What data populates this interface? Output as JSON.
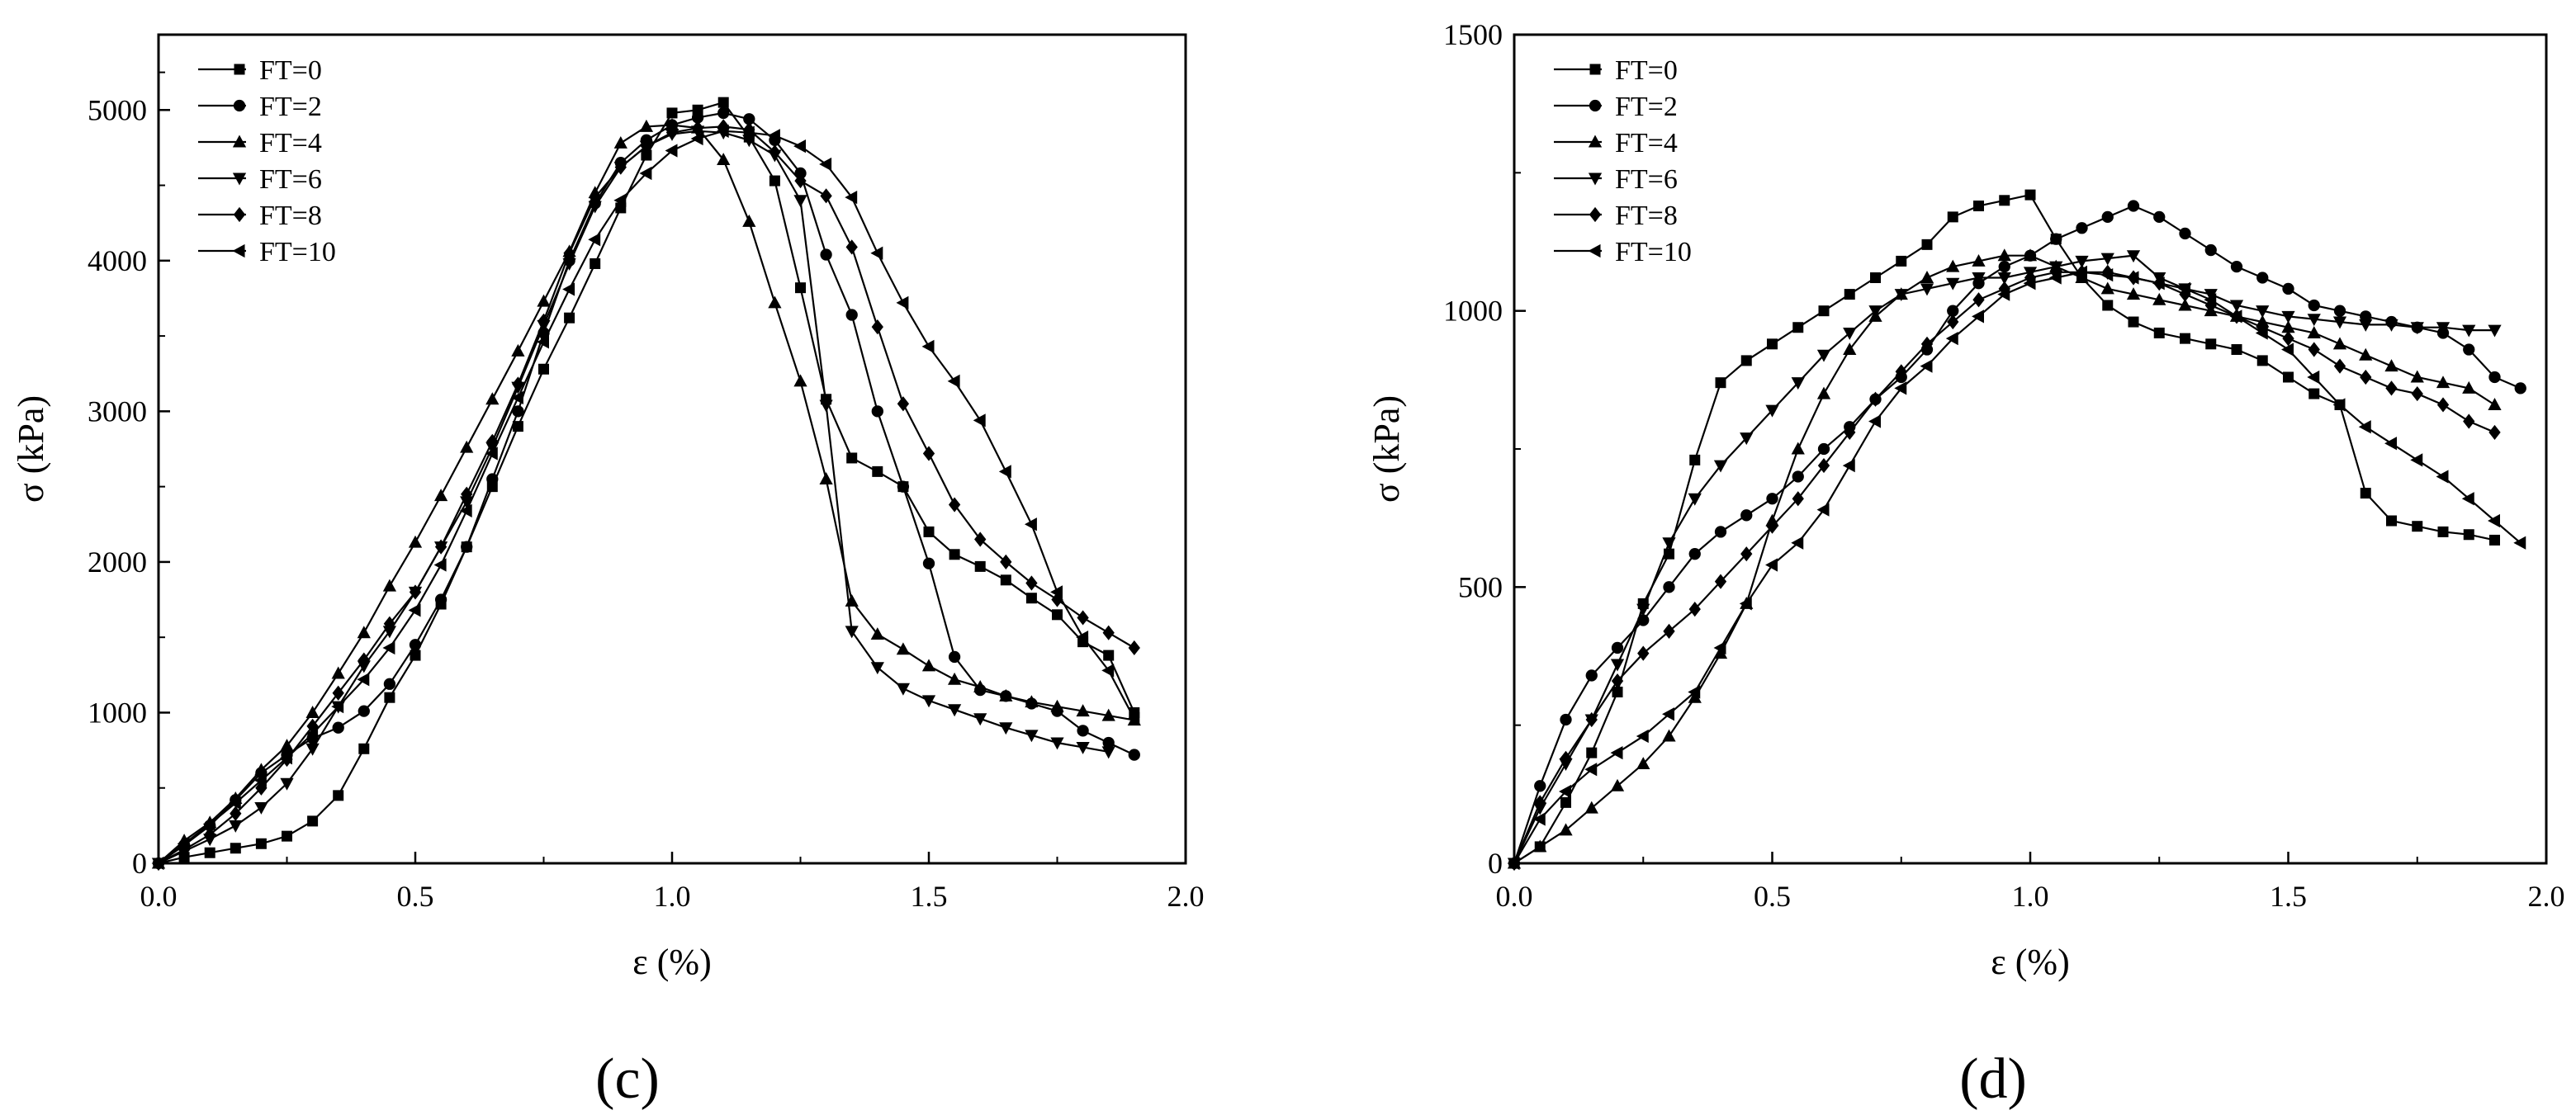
{
  "chart_data": [
    {
      "type": "line",
      "panel_label": "(c)",
      "xlabel": "ε (%)",
      "ylabel": "σ (kPa)",
      "xlim": [
        0,
        2.0
      ],
      "ylim": [
        0,
        5500
      ],
      "x_ticks": [
        0,
        0.5,
        1.0,
        1.5,
        2.0
      ],
      "x_tick_labels": [
        "0.0",
        "0.5",
        "1.0",
        "1.5",
        "2.0"
      ],
      "y_ticks": [
        0,
        1000,
        2000,
        3000,
        4000,
        5000
      ],
      "y_tick_labels": [
        "0",
        "1000",
        "2000",
        "3000",
        "4000",
        "5000"
      ],
      "legend_position": "top-left",
      "series": [
        {
          "name": "FT=0",
          "marker": "square",
          "x": [
            0,
            0.05,
            0.1,
            0.15,
            0.2,
            0.25,
            0.3,
            0.35,
            0.4,
            0.45,
            0.5,
            0.55,
            0.6,
            0.65,
            0.7,
            0.75,
            0.8,
            0.85,
            0.9,
            0.95,
            1.0,
            1.05,
            1.1,
            1.15,
            1.2,
            1.25,
            1.3,
            1.35,
            1.4,
            1.45,
            1.5,
            1.55,
            1.6,
            1.65,
            1.7,
            1.75,
            1.8,
            1.85,
            1.9
          ],
          "y": [
            0,
            40,
            70,
            100,
            130,
            180,
            280,
            450,
            760,
            1100,
            1380,
            1720,
            2100,
            2500,
            2900,
            3280,
            3620,
            3980,
            4350,
            4700,
            4980,
            5000,
            5050,
            4820,
            4530,
            3820,
            3080,
            2690,
            2600,
            2500,
            2200,
            2050,
            1970,
            1880,
            1760,
            1650,
            1470,
            1380,
            1000
          ]
        },
        {
          "name": "FT=2",
          "marker": "circle",
          "x": [
            0,
            0.05,
            0.1,
            0.15,
            0.2,
            0.25,
            0.3,
            0.35,
            0.4,
            0.45,
            0.5,
            0.55,
            0.6,
            0.65,
            0.7,
            0.75,
            0.8,
            0.85,
            0.9,
            0.95,
            1.0,
            1.05,
            1.1,
            1.15,
            1.2,
            1.25,
            1.3,
            1.35,
            1.4,
            1.45,
            1.5,
            1.55,
            1.6,
            1.65,
            1.7,
            1.75,
            1.8,
            1.85,
            1.9
          ],
          "y": [
            0,
            120,
            250,
            420,
            600,
            720,
            830,
            900,
            1010,
            1190,
            1450,
            1750,
            2100,
            2550,
            3000,
            3520,
            4000,
            4380,
            4650,
            4800,
            4900,
            4950,
            4980,
            4940,
            4800,
            4580,
            4040,
            3640,
            3000,
            2500,
            1990,
            1370,
            1150,
            1110,
            1060,
            1010,
            880,
            800,
            720
          ]
        },
        {
          "name": "FT=4",
          "marker": "triangle-up",
          "x": [
            0,
            0.05,
            0.1,
            0.15,
            0.2,
            0.25,
            0.3,
            0.35,
            0.4,
            0.45,
            0.5,
            0.55,
            0.6,
            0.65,
            0.7,
            0.75,
            0.8,
            0.85,
            0.9,
            0.95,
            1.0,
            1.05,
            1.1,
            1.15,
            1.2,
            1.25,
            1.3,
            1.35,
            1.4,
            1.45,
            1.5,
            1.55,
            1.6,
            1.65,
            1.7,
            1.75,
            1.8,
            1.85,
            1.9
          ],
          "y": [
            0,
            150,
            270,
            430,
            620,
            780,
            1000,
            1260,
            1530,
            1840,
            2130,
            2440,
            2760,
            3080,
            3400,
            3730,
            4060,
            4450,
            4780,
            4890,
            4900,
            4880,
            4670,
            4260,
            3720,
            3200,
            2550,
            1740,
            1520,
            1420,
            1310,
            1220,
            1170,
            1110,
            1070,
            1040,
            1010,
            980,
            950
          ]
        },
        {
          "name": "FT=6",
          "marker": "triangle-down",
          "x": [
            0,
            0.05,
            0.1,
            0.15,
            0.2,
            0.25,
            0.3,
            0.35,
            0.4,
            0.45,
            0.5,
            0.55,
            0.6,
            0.65,
            0.7,
            0.75,
            0.8,
            0.85,
            0.9,
            0.95,
            1.0,
            1.05,
            1.1,
            1.15,
            1.2,
            1.25,
            1.3,
            1.35,
            1.4,
            1.45,
            1.5,
            1.55,
            1.6,
            1.65,
            1.7,
            1.75,
            1.8,
            1.85
          ],
          "y": [
            0,
            80,
            160,
            250,
            370,
            530,
            760,
            1040,
            1310,
            1540,
            1800,
            2100,
            2400,
            2760,
            3160,
            3570,
            3980,
            4360,
            4620,
            4760,
            4840,
            4860,
            4850,
            4800,
            4700,
            4400,
            3040,
            1540,
            1300,
            1160,
            1080,
            1020,
            960,
            900,
            850,
            800,
            770,
            740
          ]
        },
        {
          "name": "FT=8",
          "marker": "diamond",
          "x": [
            0,
            0.05,
            0.1,
            0.15,
            0.2,
            0.25,
            0.3,
            0.35,
            0.4,
            0.45,
            0.5,
            0.55,
            0.6,
            0.65,
            0.7,
            0.75,
            0.8,
            0.85,
            0.9,
            0.95,
            1.0,
            1.05,
            1.1,
            1.15,
            1.2,
            1.25,
            1.3,
            1.35,
            1.4,
            1.45,
            1.5,
            1.55,
            1.6,
            1.65,
            1.7,
            1.75,
            1.8,
            1.85,
            1.9
          ],
          "y": [
            0,
            90,
            190,
            330,
            500,
            690,
            910,
            1130,
            1350,
            1590,
            1800,
            2100,
            2450,
            2800,
            3180,
            3600,
            4050,
            4420,
            4620,
            4760,
            4850,
            4880,
            4890,
            4870,
            4720,
            4530,
            4430,
            4090,
            3560,
            3050,
            2720,
            2380,
            2150,
            2000,
            1860,
            1750,
            1630,
            1530,
            1430
          ]
        },
        {
          "name": "FT=10",
          "marker": "triangle-left",
          "x": [
            0,
            0.05,
            0.1,
            0.15,
            0.2,
            0.25,
            0.3,
            0.35,
            0.4,
            0.45,
            0.5,
            0.55,
            0.6,
            0.65,
            0.7,
            0.75,
            0.8,
            0.85,
            0.9,
            0.95,
            1.0,
            1.05,
            1.1,
            1.15,
            1.2,
            1.25,
            1.3,
            1.35,
            1.4,
            1.45,
            1.5,
            1.55,
            1.6,
            1.65,
            1.7,
            1.75,
            1.8,
            1.85,
            1.9
          ],
          "y": [
            0,
            130,
            260,
            400,
            550,
            700,
            860,
            1040,
            1220,
            1430,
            1680,
            1980,
            2340,
            2720,
            3090,
            3460,
            3810,
            4140,
            4400,
            4580,
            4730,
            4810,
            4860,
            4850,
            4830,
            4760,
            4640,
            4420,
            4050,
            3720,
            3430,
            3200,
            2940,
            2600,
            2250,
            1800,
            1500,
            1280,
            960
          ]
        }
      ]
    },
    {
      "type": "line",
      "panel_label": "(d)",
      "xlabel": "ε (%)",
      "ylabel": "σ (kPa)",
      "xlim": [
        0,
        2.0
      ],
      "ylim": [
        0,
        1500
      ],
      "x_ticks": [
        0,
        0.5,
        1.0,
        1.5,
        2.0
      ],
      "x_tick_labels": [
        "0.0",
        "0.5",
        "1.0",
        "1.5",
        "2.0"
      ],
      "y_ticks": [
        0,
        500,
        1000,
        1500
      ],
      "y_tick_labels": [
        "0",
        "500",
        "1000",
        "1500"
      ],
      "legend_position": "top-left",
      "series": [
        {
          "name": "FT=0",
          "marker": "square",
          "x": [
            0,
            0.05,
            0.1,
            0.15,
            0.2,
            0.25,
            0.3,
            0.35,
            0.4,
            0.45,
            0.5,
            0.55,
            0.6,
            0.65,
            0.7,
            0.75,
            0.8,
            0.85,
            0.9,
            0.95,
            1.0,
            1.05,
            1.1,
            1.15,
            1.2,
            1.25,
            1.3,
            1.35,
            1.4,
            1.45,
            1.5,
            1.55,
            1.6,
            1.65,
            1.7,
            1.75,
            1.8,
            1.85,
            1.9
          ],
          "y": [
            0,
            30,
            110,
            200,
            310,
            470,
            560,
            730,
            870,
            910,
            940,
            970,
            1000,
            1030,
            1060,
            1090,
            1120,
            1170,
            1190,
            1200,
            1210,
            1130,
            1060,
            1010,
            980,
            960,
            950,
            940,
            930,
            910,
            880,
            850,
            830,
            670,
            620,
            610,
            600,
            595,
            585
          ]
        },
        {
          "name": "FT=2",
          "marker": "circle",
          "x": [
            0,
            0.05,
            0.1,
            0.15,
            0.2,
            0.25,
            0.3,
            0.35,
            0.4,
            0.45,
            0.5,
            0.55,
            0.6,
            0.65,
            0.7,
            0.75,
            0.8,
            0.85,
            0.9,
            0.95,
            1.0,
            1.05,
            1.1,
            1.15,
            1.2,
            1.25,
            1.3,
            1.35,
            1.4,
            1.45,
            1.5,
            1.55,
            1.6,
            1.65,
            1.7,
            1.75,
            1.8,
            1.85,
            1.9,
            1.95
          ],
          "y": [
            0,
            140,
            260,
            340,
            390,
            440,
            500,
            560,
            600,
            630,
            660,
            700,
            750,
            790,
            840,
            880,
            930,
            1000,
            1050,
            1080,
            1100,
            1130,
            1150,
            1170,
            1190,
            1170,
            1140,
            1110,
            1080,
            1060,
            1040,
            1010,
            1000,
            990,
            980,
            970,
            960,
            930,
            880,
            860
          ]
        },
        {
          "name": "FT=4",
          "marker": "triangle-up",
          "x": [
            0,
            0.05,
            0.1,
            0.15,
            0.2,
            0.25,
            0.3,
            0.35,
            0.4,
            0.45,
            0.5,
            0.55,
            0.6,
            0.65,
            0.7,
            0.75,
            0.8,
            0.85,
            0.9,
            0.95,
            1.0,
            1.05,
            1.1,
            1.15,
            1.2,
            1.25,
            1.3,
            1.35,
            1.4,
            1.45,
            1.5,
            1.55,
            1.6,
            1.65,
            1.7,
            1.75,
            1.8,
            1.85,
            1.9
          ],
          "y": [
            0,
            30,
            60,
            100,
            140,
            180,
            230,
            300,
            380,
            470,
            620,
            750,
            850,
            930,
            990,
            1030,
            1060,
            1080,
            1090,
            1100,
            1100,
            1080,
            1060,
            1040,
            1030,
            1020,
            1010,
            1000,
            990,
            980,
            970,
            960,
            940,
            920,
            900,
            880,
            870,
            860,
            830
          ]
        },
        {
          "name": "FT=6",
          "marker": "triangle-down",
          "x": [
            0,
            0.05,
            0.1,
            0.15,
            0.2,
            0.25,
            0.3,
            0.35,
            0.4,
            0.45,
            0.5,
            0.55,
            0.6,
            0.65,
            0.7,
            0.75,
            0.8,
            0.85,
            0.9,
            0.95,
            1.0,
            1.05,
            1.1,
            1.15,
            1.2,
            1.25,
            1.3,
            1.35,
            1.4,
            1.45,
            1.5,
            1.55,
            1.6,
            1.65,
            1.7,
            1.75,
            1.8,
            1.85,
            1.9
          ],
          "y": [
            0,
            100,
            180,
            260,
            360,
            460,
            580,
            660,
            720,
            770,
            820,
            870,
            920,
            960,
            1000,
            1030,
            1040,
            1050,
            1060,
            1060,
            1070,
            1080,
            1090,
            1095,
            1100,
            1060,
            1040,
            1030,
            1010,
            1000,
            990,
            985,
            980,
            975,
            975,
            970,
            970,
            965,
            965
          ]
        },
        {
          "name": "FT=8",
          "marker": "diamond",
          "x": [
            0,
            0.05,
            0.1,
            0.15,
            0.2,
            0.25,
            0.3,
            0.35,
            0.4,
            0.45,
            0.5,
            0.55,
            0.6,
            0.65,
            0.7,
            0.75,
            0.8,
            0.85,
            0.9,
            0.95,
            1.0,
            1.05,
            1.1,
            1.15,
            1.2,
            1.25,
            1.3,
            1.35,
            1.4,
            1.45,
            1.5,
            1.55,
            1.6,
            1.65,
            1.7,
            1.75,
            1.8,
            1.85,
            1.9
          ],
          "y": [
            0,
            110,
            190,
            260,
            330,
            380,
            420,
            460,
            510,
            560,
            610,
            660,
            720,
            780,
            840,
            890,
            940,
            980,
            1020,
            1040,
            1060,
            1070,
            1070,
            1070,
            1060,
            1050,
            1030,
            1010,
            990,
            970,
            950,
            930,
            900,
            880,
            860,
            850,
            830,
            800,
            780
          ]
        },
        {
          "name": "FT=10",
          "marker": "triangle-left",
          "x": [
            0,
            0.05,
            0.1,
            0.15,
            0.2,
            0.25,
            0.3,
            0.35,
            0.4,
            0.45,
            0.5,
            0.55,
            0.6,
            0.65,
            0.7,
            0.75,
            0.8,
            0.85,
            0.9,
            0.95,
            1.0,
            1.05,
            1.1,
            1.15,
            1.2,
            1.25,
            1.3,
            1.35,
            1.4,
            1.45,
            1.5,
            1.55,
            1.6,
            1.65,
            1.7,
            1.75,
            1.8,
            1.85,
            1.9,
            1.95
          ],
          "y": [
            0,
            80,
            130,
            170,
            200,
            230,
            270,
            310,
            390,
            470,
            540,
            580,
            640,
            720,
            800,
            860,
            900,
            950,
            990,
            1030,
            1050,
            1060,
            1070,
            1065,
            1060,
            1050,
            1040,
            1020,
            990,
            960,
            930,
            880,
            830,
            790,
            760,
            730,
            700,
            660,
            620,
            580
          ]
        }
      ]
    }
  ]
}
